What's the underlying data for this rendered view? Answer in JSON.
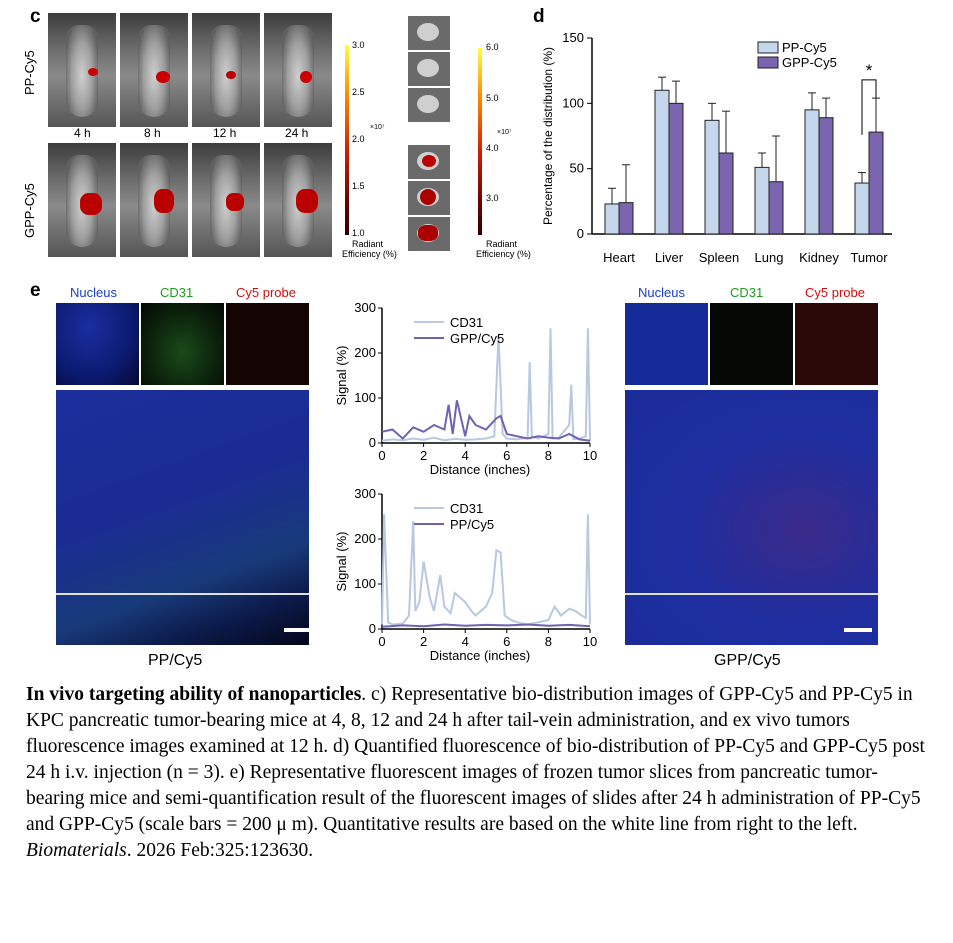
{
  "panel_c": {
    "label": "c",
    "row_labels": [
      "PP-Cy5",
      "GPP-Cy5"
    ],
    "timepoints": [
      "4 h",
      "8 h",
      "12 h",
      "24 h"
    ],
    "scale1": {
      "ticks": [
        "3.0",
        "2.5",
        "2.0",
        "1.5",
        "1.0"
      ],
      "exp": "×10⁷",
      "title_line1": "Radiant",
      "title_line2": "Efficiency (%)"
    },
    "scale2": {
      "ticks": [
        "6.0",
        "5.0",
        "4.0",
        "3.0"
      ],
      "exp": "×10⁷",
      "title_line1": "Radiant",
      "title_line2": "Efficiency (%)"
    }
  },
  "panel_d": {
    "label": "d",
    "significance": "*",
    "chart_data": {
      "type": "bar",
      "categories": [
        "Heart",
        "Liver",
        "Spleen",
        "Lung",
        "Kidney",
        "Tumor"
      ],
      "series": [
        {
          "name": "PP-Cy5",
          "color": "#c5d7ec",
          "values": [
            23,
            110,
            87,
            51,
            95,
            39
          ],
          "errors": [
            12,
            10,
            13,
            11,
            13,
            8
          ]
        },
        {
          "name": "GPP-Cy5",
          "color": "#7b64b0",
          "values": [
            24,
            100,
            62,
            40,
            89,
            78
          ],
          "errors": [
            29,
            17,
            32,
            35,
            15,
            26
          ]
        }
      ],
      "ylabel": "Percentage of the distribution (%)",
      "yticks": [
        "0",
        "50",
        "100",
        "150"
      ],
      "ylim": [
        0,
        150
      ]
    }
  },
  "panel_e": {
    "label": "e",
    "left": {
      "channels": [
        "Nucleus",
        "CD31",
        "Cy5 probe"
      ],
      "title": "PP/Cy5"
    },
    "right": {
      "channels": [
        "Nucleus",
        "CD31",
        "Cy5 probe"
      ],
      "title": "GPP/Cy5"
    },
    "charts": [
      {
        "type": "line",
        "legend": [
          "CD31",
          "GPP/Cy5"
        ],
        "xlabel": "Distance (inches)",
        "ylabel": "Signal (%)",
        "xticks": [
          "0",
          "2",
          "4",
          "6",
          "8",
          "10"
        ],
        "yticks": [
          "0",
          "100",
          "200",
          "300"
        ],
        "xlim": [
          0,
          10
        ],
        "ylim": [
          0,
          300
        ],
        "series": [
          {
            "name": "CD31",
            "color": "#b8c8e0",
            "x": [
              0,
              0.5,
              1,
              1.5,
              2,
              2.5,
              3,
              3.5,
              4,
              4.5,
              5,
              5.4,
              5.6,
              5.8,
              6,
              6.5,
              7,
              7.1,
              7.2,
              7.5,
              8,
              8.1,
              8.2,
              8.5,
              9,
              9.1,
              9.2,
              9.5,
              9.8,
              9.9,
              10
            ],
            "y": [
              5,
              8,
              6,
              10,
              7,
              12,
              6,
              9,
              7,
              8,
              10,
              15,
              240,
              20,
              10,
              8,
              12,
              180,
              15,
              10,
              20,
              255,
              10,
              12,
              40,
              130,
              8,
              10,
              15,
              255,
              5
            ]
          },
          {
            "name": "GPP/Cy5",
            "color": "#7061b3",
            "x": [
              0,
              0.5,
              1,
              1.5,
              2,
              2.5,
              3,
              3.2,
              3.4,
              3.6,
              4,
              4.2,
              4.5,
              5,
              5.5,
              5.7,
              6,
              6.5,
              7,
              7.5,
              8,
              8.5,
              9,
              9.5,
              10
            ],
            "y": [
              25,
              30,
              10,
              35,
              25,
              40,
              30,
              85,
              20,
              95,
              15,
              60,
              40,
              30,
              55,
              60,
              20,
              15,
              10,
              15,
              12,
              10,
              20,
              8,
              5
            ]
          }
        ]
      },
      {
        "type": "line",
        "legend": [
          "CD31",
          "PP/Cy5"
        ],
        "xlabel": "Distance (inches)",
        "ylabel": "Signal (%)",
        "xticks": [
          "0",
          "2",
          "4",
          "6",
          "8",
          "10"
        ],
        "yticks": [
          "0",
          "100",
          "200",
          "300"
        ],
        "xlim": [
          0,
          10
        ],
        "ylim": [
          0,
          300
        ],
        "series": [
          {
            "name": "CD31",
            "color": "#b8c8e0",
            "x": [
              0,
              0.1,
              0.3,
              0.5,
              1,
              1.3,
              1.5,
              1.6,
              1.8,
              2,
              2.3,
              2.5,
              2.8,
              3,
              3.3,
              3.5,
              4,
              4.3,
              4.5,
              5,
              5.3,
              5.5,
              5.7,
              5.9,
              6.2,
              6.5,
              7,
              7.5,
              8,
              8.3,
              8.6,
              9,
              9.3,
              9.6,
              9.8,
              9.9,
              10
            ],
            "y": [
              10,
              255,
              15,
              10,
              12,
              30,
              240,
              40,
              60,
              150,
              70,
              40,
              120,
              50,
              35,
              80,
              60,
              40,
              30,
              50,
              80,
              175,
              170,
              30,
              20,
              15,
              10,
              15,
              20,
              50,
              30,
              45,
              40,
              30,
              25,
              255,
              10
            ]
          },
          {
            "name": "PP/Cy5",
            "color": "#7061b3",
            "x": [
              0,
              1,
              2,
              3,
              4,
              5,
              6,
              7,
              8,
              9,
              10
            ],
            "y": [
              5,
              8,
              6,
              10,
              7,
              9,
              8,
              10,
              7,
              9,
              6
            ]
          }
        ]
      }
    ]
  },
  "caption": {
    "bold": "In vivo targeting ability of nanoparticles",
    "text1": ". c) Representative bio-distribution images of GPP-Cy5 and PP-Cy5 in KPC pancreatic tumor-bearing mice at 4, 8, 12 and 24 h after tail-vein administration, and ex vivo tumors fluorescence images examined at 12 h. d) Quantified fluorescence of bio-distribution of PP-Cy5 and GPP-Cy5 post 24 h i.v. injection (n = 3). e) Representative fluorescent images of frozen tumor slices from pancreatic tumor-bearing mice and semi-quantification result of the fluorescent images of slides after 24 h administration of PP-Cy5 and GPP-Cy5 (scale bars = 200  μ m). Quantitative results are based on the white line from right to the left. ",
    "journal": "Biomaterials",
    "text2": ". 2026 Feb:325:123630."
  }
}
